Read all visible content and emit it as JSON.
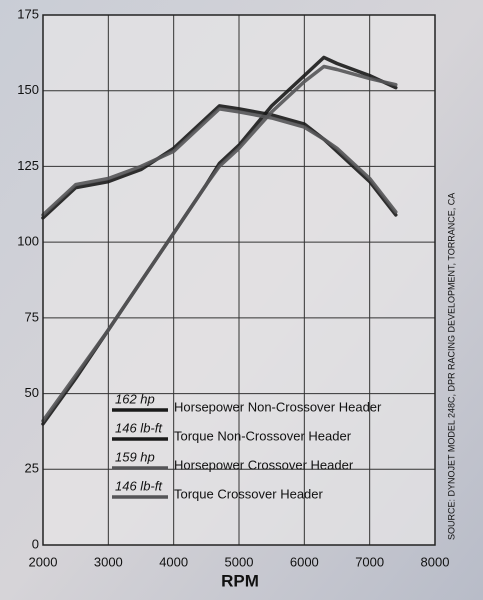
{
  "chart_data": {
    "type": "line",
    "xlabel": "RPM",
    "source": "SOURCE: DYNOJET MODEL 248C, DPR RACING DEVELOPMENT, TORRANCE, CA",
    "x": [
      2000,
      2500,
      3000,
      3500,
      4000,
      4500,
      4700,
      5000,
      5500,
      6000,
      6300,
      6500,
      7000,
      7400
    ],
    "series": [
      {
        "name": "Horsepower Non-Crossover Header",
        "peak_label": "162 hp",
        "color": "#1a1a1a",
        "values": [
          40,
          55,
          71,
          87,
          103,
          119,
          126,
          132,
          145,
          155,
          161,
          159,
          155,
          151
        ]
      },
      {
        "name": "Torque Non-Crossover Header",
        "peak_label": "146 lb-ft",
        "color": "#1a1a1a",
        "values": [
          108,
          118,
          120,
          124,
          131,
          141,
          145,
          144,
          142,
          139,
          134,
          130,
          120,
          109
        ]
      },
      {
        "name": "Horsepower Crossover Header",
        "peak_label": "159 hp",
        "color": "#555558",
        "values": [
          41,
          56,
          71,
          87,
          103,
          119,
          125,
          131,
          143,
          153,
          158,
          157,
          154,
          152
        ]
      },
      {
        "name": "Torque Crossover Header",
        "peak_label": "146 lb-ft",
        "color": "#555558",
        "values": [
          109,
          119,
          121,
          125,
          130,
          140,
          144,
          143,
          141,
          138,
          134,
          131,
          121,
          110
        ]
      }
    ],
    "xlim": [
      2000,
      8000
    ],
    "xticks": [
      2000,
      3000,
      4000,
      5000,
      6000,
      7000,
      8000
    ],
    "ylim": [
      0,
      175
    ],
    "yticks": [
      0,
      25,
      50,
      75,
      100,
      125,
      150,
      175
    ],
    "grid": true
  }
}
